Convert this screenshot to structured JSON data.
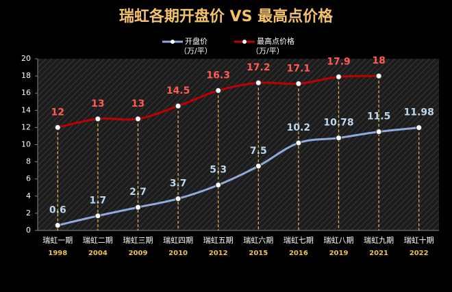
{
  "chart_data": {
    "type": "line",
    "title": "瑞虹各期开盘价 VS 最高点价格",
    "categories": [
      "瑞虹一期",
      "瑞虹二期",
      "瑞虹三期",
      "瑞虹四期",
      "瑞虹五期",
      "瑞虹六期",
      "瑞虹七期",
      "瑞虹八期",
      "瑞虹九期",
      "瑞虹十期"
    ],
    "years": [
      "1998",
      "2004",
      "2009",
      "2010",
      "2012",
      "2015",
      "2016",
      "2019",
      "2021",
      "2022"
    ],
    "series": [
      {
        "name": "开盘价",
        "unit": "（万/平）",
        "color": "#8faadc",
        "label_color": "#bdd7ee",
        "values": [
          0.6,
          1.7,
          2.7,
          3.7,
          5.3,
          7.5,
          10.2,
          10.78,
          11.5,
          11.98
        ]
      },
      {
        "name": "最高点价格",
        "unit": "（万/平）",
        "color": "#c00000",
        "label_color": "#ff5b4f",
        "values": [
          12,
          13,
          13,
          14.5,
          16.3,
          17.2,
          17.1,
          17.9,
          18,
          null
        ]
      }
    ],
    "ylim": [
      0,
      20
    ],
    "yticks": [
      0,
      2,
      4,
      6,
      8,
      10,
      12,
      14,
      16,
      18,
      20
    ],
    "grid": false,
    "drop_lines": true,
    "drop_line_color": "#f0c050",
    "title_color": "#f5c26b",
    "year_color": "#f0c050"
  }
}
